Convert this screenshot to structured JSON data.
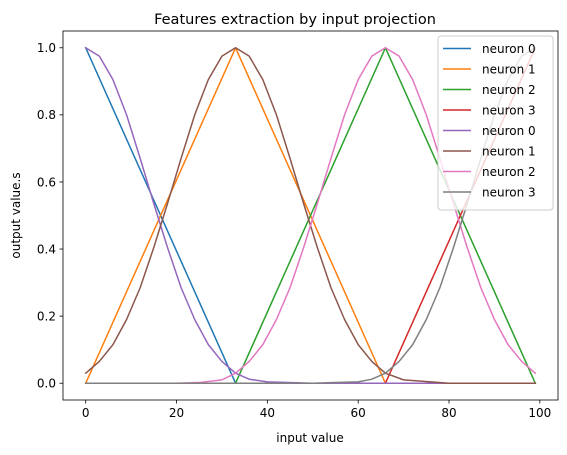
{
  "chart_data": {
    "type": "line",
    "title": "Features extraction by input projection",
    "xlabel": "input value",
    "ylabel": "output value.s",
    "xlim": [
      -5,
      104
    ],
    "ylim": [
      -0.05,
      1.05
    ],
    "xticks": [
      0,
      20,
      40,
      60,
      80,
      100
    ],
    "xtick_labels": [
      "0",
      "20",
      "40",
      "60",
      "80",
      "100"
    ],
    "yticks": [
      0.0,
      0.2,
      0.4,
      0.6,
      0.8,
      1.0
    ],
    "ytick_labels": [
      "0.0",
      "0.2",
      "0.4",
      "0.6",
      "0.8",
      "1.0"
    ],
    "grid": false,
    "legend_position": "top-right",
    "series": [
      {
        "name": "neuron 0",
        "color": "#1f77b4",
        "x": [
          0,
          33,
          99
        ],
        "y": [
          1.0,
          0.0,
          0.0
        ]
      },
      {
        "name": "neuron 1",
        "color": "#ff7f0e",
        "x": [
          0,
          33,
          66,
          99
        ],
        "y": [
          0.0,
          1.0,
          0.0,
          0.0
        ]
      },
      {
        "name": "neuron 2",
        "color": "#2ca02c",
        "x": [
          0,
          33,
          66,
          99
        ],
        "y": [
          0.0,
          0.0,
          1.0,
          0.0
        ]
      },
      {
        "name": "neuron 3",
        "color": "#d62728",
        "x": [
          0,
          66,
          99
        ],
        "y": [
          0.0,
          0.0,
          1.0
        ]
      },
      {
        "name": "neuron 0",
        "color": "#9467bd",
        "x": [
          0,
          3,
          6,
          9,
          12,
          15,
          18,
          21,
          24,
          27,
          30,
          33,
          36,
          40,
          50,
          60,
          70,
          80,
          90,
          99
        ],
        "y": [
          1.0,
          0.975,
          0.905,
          0.8,
          0.67,
          0.535,
          0.405,
          0.285,
          0.19,
          0.115,
          0.065,
          0.03,
          0.012,
          0.004,
          0.0,
          0.0,
          0.0,
          0.0,
          0.0,
          0.0
        ]
      },
      {
        "name": "neuron 1",
        "color": "#8c564b",
        "x": [
          0,
          3,
          6,
          9,
          12,
          15,
          18,
          21,
          24,
          27,
          30,
          33,
          36,
          39,
          42,
          45,
          48,
          51,
          54,
          57,
          60,
          63,
          66,
          70,
          80,
          90,
          99
        ],
        "y": [
          0.03,
          0.065,
          0.115,
          0.19,
          0.285,
          0.405,
          0.535,
          0.67,
          0.8,
          0.905,
          0.975,
          1.0,
          0.975,
          0.905,
          0.8,
          0.67,
          0.535,
          0.405,
          0.285,
          0.19,
          0.115,
          0.065,
          0.03,
          0.01,
          0.0,
          0.0,
          0.0
        ]
      },
      {
        "name": "neuron 2",
        "color": "#e377c2",
        "x": [
          0,
          10,
          20,
          25,
          30,
          33,
          36,
          39,
          42,
          45,
          48,
          51,
          54,
          57,
          60,
          63,
          66,
          69,
          72,
          75,
          78,
          81,
          84,
          87,
          90,
          93,
          96,
          99
        ],
        "y": [
          0.0,
          0.0,
          0.0,
          0.002,
          0.01,
          0.03,
          0.065,
          0.115,
          0.19,
          0.285,
          0.405,
          0.535,
          0.67,
          0.8,
          0.905,
          0.975,
          1.0,
          0.975,
          0.905,
          0.8,
          0.67,
          0.535,
          0.405,
          0.285,
          0.19,
          0.115,
          0.065,
          0.03
        ]
      },
      {
        "name": "neuron 3",
        "color": "#7f7f7f",
        "x": [
          0,
          20,
          40,
          50,
          55,
          60,
          63,
          66,
          69,
          72,
          75,
          78,
          81,
          84,
          87,
          90,
          93,
          96,
          99
        ],
        "y": [
          0.0,
          0.0,
          0.0,
          0.0,
          0.002,
          0.004,
          0.012,
          0.03,
          0.065,
          0.115,
          0.19,
          0.285,
          0.405,
          0.535,
          0.67,
          0.8,
          0.905,
          0.975,
          1.0
        ]
      }
    ]
  }
}
